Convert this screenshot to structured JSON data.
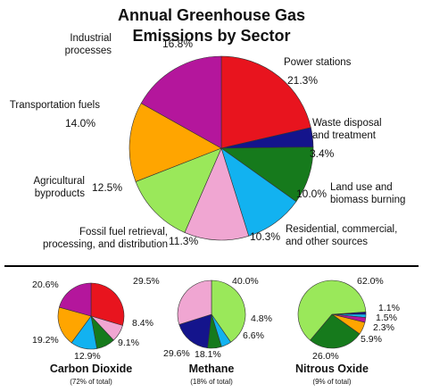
{
  "chart_data": [
    {
      "type": "pie",
      "title": "Annual Greenhouse Gas Emissions by Sector",
      "categories": [
        "Power stations",
        "Waste disposal\nand treatment",
        "Land use and\nbiomass burning",
        "Residential, commercial,\nand other sources",
        "Fossil fuel retrieval,\nprocessing, and distribution",
        "Agricultural\nbyproducts",
        "Transportation fuels",
        "Industrial\nprocesses"
      ],
      "values": [
        21.3,
        3.4,
        10.0,
        10.3,
        11.3,
        12.5,
        14.0,
        16.8
      ],
      "value_labels": [
        "21.3%",
        "3.4%",
        "10.0%",
        "10.3%",
        "11.3%",
        "12.5%",
        "14.0%",
        "16.8%"
      ],
      "colors": [
        "#e8141e",
        "#14148c",
        "#167a1c",
        "#12b2f0",
        "#f0a6d2",
        "#9ae85a",
        "#ffa500",
        "#b4169c"
      ]
    },
    {
      "type": "pie",
      "title": "Carbon Dioxide",
      "subtitle": "(72% of total)",
      "values": [
        29.5,
        8.4,
        9.1,
        12.9,
        19.2,
        20.6
      ],
      "value_labels": [
        "29.5%",
        "8.4%",
        "9.1%",
        "12.9%",
        "19.2%",
        "20.6%"
      ],
      "colors": [
        "#e8141e",
        "#f0a6d2",
        "#167a1c",
        "#12b2f0",
        "#ffa500",
        "#b4169c"
      ]
    },
    {
      "type": "pie",
      "title": "Methane",
      "subtitle": "(18% of total)",
      "values": [
        40.0,
        4.8,
        6.6,
        18.1,
        29.6
      ],
      "value_labels": [
        "40.0%",
        "4.8%",
        "6.6%",
        "18.1%",
        "29.6%"
      ],
      "colors": [
        "#9ae85a",
        "#12b2f0",
        "#167a1c",
        "#14148c",
        "#f0a6d2"
      ]
    },
    {
      "type": "pie",
      "title": "Nitrous Oxide",
      "subtitle": "(9% of total)",
      "values": [
        1.1,
        1.5,
        2.3,
        5.9,
        26.0,
        62.0
      ],
      "value_labels": [
        "1.1%",
        "1.5%",
        "2.3%",
        "5.9%",
        "26.0%",
        "62.0%"
      ],
      "colors": [
        "#14148c",
        "#12b2f0",
        "#b4169c",
        "#ffa500",
        "#167a1c",
        "#9ae85a"
      ]
    }
  ]
}
